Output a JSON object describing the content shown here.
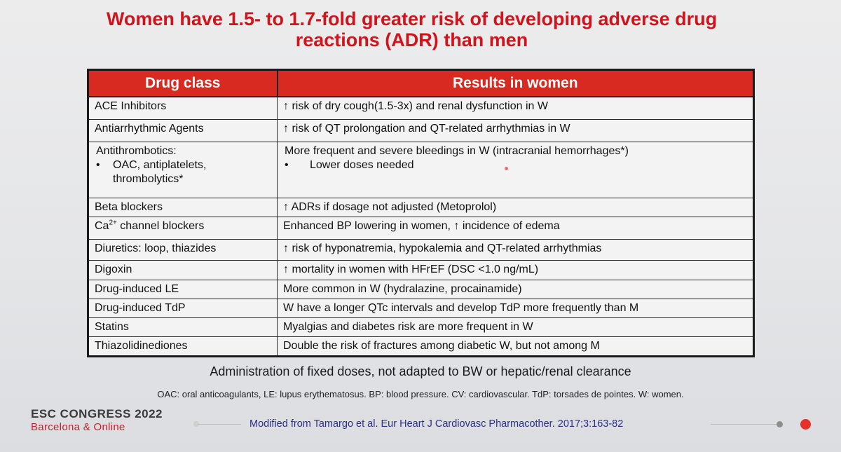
{
  "title": {
    "line1": "Women have 1.5- to 1.7-fold greater risk of developing adverse drug",
    "line2": "reactions (ADR) than men"
  },
  "table": {
    "headers": [
      "Drug class",
      "Results in women"
    ],
    "rows": [
      {
        "drug": "ACE Inhibitors",
        "result": "↑ risk of dry cough(1.5-3x) and renal dysfunction in W"
      },
      {
        "drug": "Antiarrhythmic Agents",
        "result": "↑ risk of QT prolongation and QT-related arrhythmias in W"
      },
      {
        "drug": "Antithrombotics:",
        "drug_bullet": "•",
        "drug_sub1": "OAC, antiplatelets,",
        "drug_sub2": "thrombolytics*",
        "result": "More frequent and severe bleedings in W (intracranial hemorrhages*)",
        "result_bullet": "•",
        "result_sub": "Lower doses needed"
      },
      {
        "drug": "Beta blockers",
        "result": "↑ ADRs if dosage not adjusted (Metoprolol)"
      },
      {
        "drug_pre": "Ca",
        "drug_sup": "2+",
        "drug_post": " channel blockers",
        "result": "Enhanced BP lowering in women, ↑ incidence of edema"
      },
      {
        "drug": "Diuretics: loop, thiazides",
        "result": "↑ risk of hyponatremia, hypokalemia and QT-related arrhythmias"
      },
      {
        "drug": "Digoxin",
        "result": "↑ mortality in women with HFrEF (DSC <1.0 ng/mL)"
      },
      {
        "drug": "Drug-induced LE",
        "result": "More common in W (hydralazine, procainamide)"
      },
      {
        "drug": "Drug-induced TdP",
        "result": "W have a longer QTc intervals and develop TdP more frequently than M"
      },
      {
        "drug": "Statins",
        "result": "Myalgias and diabetes risk are more frequent in W"
      },
      {
        "drug": "Thiazolidinediones",
        "result": "Double the risk of fractures among diabetic W, but not among M"
      }
    ]
  },
  "note": "Administration of fixed doses, not adapted to BW or hepatic/renal clearance",
  "abbreviations": "OAC: oral anticoagulants, LE: lupus erythematosus. BP: blood pressure. CV: cardiovascular. TdP: torsades de pointes. W: women.",
  "footer": {
    "congress": "ESC CONGRESS 2022",
    "city": "Barcelona & Online",
    "reference": "Modified from Tamargo et al. Eur Heart J Cardiovasc Pharmacother. 2017;3:163-82"
  },
  "colors": {
    "title": "#d1131b",
    "header_bg": "#d92a22",
    "reference": "#2a2f8a",
    "city": "#c4202a"
  }
}
